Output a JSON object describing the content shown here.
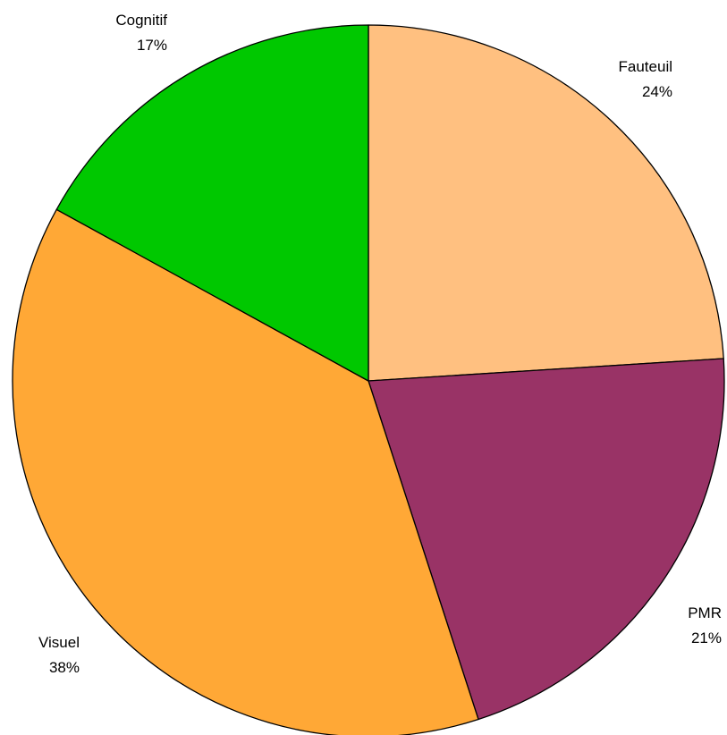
{
  "chart_data": {
    "type": "pie",
    "title": "",
    "slices": [
      {
        "label": "Fauteuil",
        "value": 24,
        "value_label": "24%",
        "color": "#FFC080"
      },
      {
        "label": "PMR",
        "value": 21,
        "value_label": "21%",
        "color": "#993366"
      },
      {
        "label": "Visuel",
        "value": 38,
        "value_label": "38%",
        "color": "#FFA836"
      },
      {
        "label": "Cognitif",
        "value": 17,
        "value_label": "17%",
        "color": "#00C800"
      }
    ],
    "start_direction": "12 o'clock",
    "direction": "clockwise",
    "legend": "none (labels beside slices)"
  }
}
